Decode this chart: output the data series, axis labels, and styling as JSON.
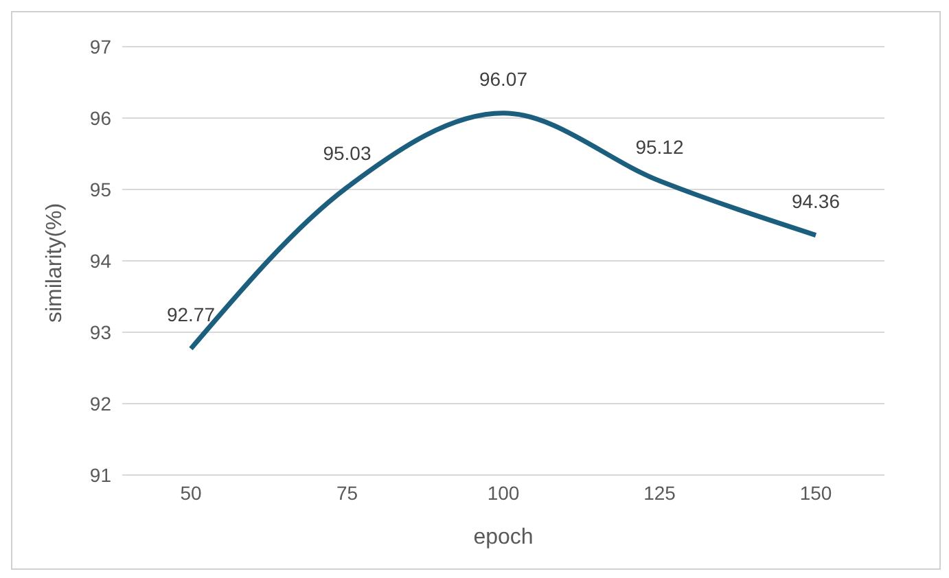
{
  "chart_data": {
    "type": "line",
    "xlabel": "epoch",
    "ylabel": "similarity(%)",
    "categories": [
      "50",
      "75",
      "100",
      "125",
      "150"
    ],
    "series": [
      {
        "color": "#1b5e7e",
        "values": [
          92.77,
          95.03,
          96.07,
          95.12,
          94.36
        ]
      }
    ],
    "ylim": [
      91,
      97
    ],
    "yticks": [
      91,
      92,
      93,
      94,
      95,
      96,
      97
    ],
    "grid": "y",
    "data_labels": true,
    "marker": "none",
    "line_style": "solid"
  }
}
